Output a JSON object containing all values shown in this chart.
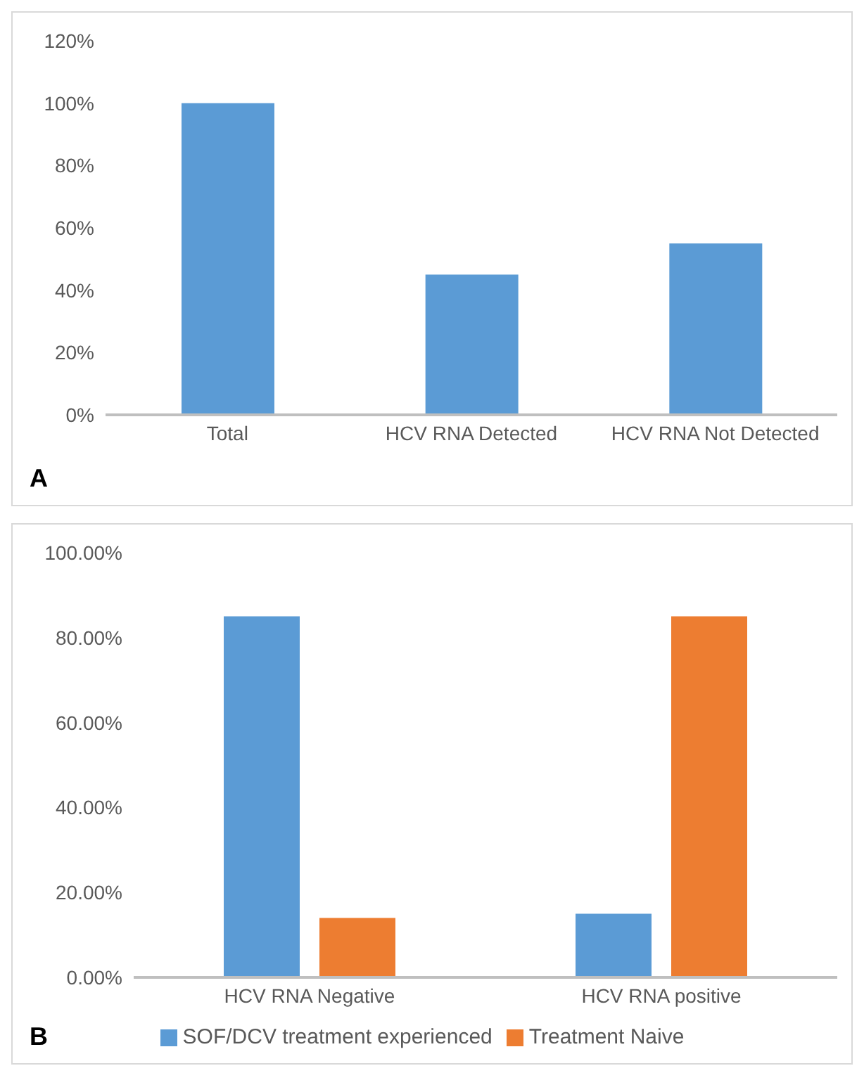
{
  "chart_data": [
    {
      "type": "bar",
      "categories": [
        "Total",
        "HCV RNA Detected",
        "HCV RNA Not Detected"
      ],
      "values": [
        100,
        45,
        55
      ],
      "color": "#5b9bd5",
      "ylim": [
        0,
        120
      ],
      "yticks": [
        {
          "value": 0,
          "label": "0%"
        },
        {
          "value": 20,
          "label": "20%"
        },
        {
          "value": 40,
          "label": "40%"
        },
        {
          "value": 60,
          "label": "60%"
        },
        {
          "value": 80,
          "label": "80%"
        },
        {
          "value": 100,
          "label": "100%"
        },
        {
          "value": 120,
          "label": "120%"
        }
      ],
      "grid": false,
      "legend": false,
      "annotations": [
        "A"
      ]
    },
    {
      "type": "bar",
      "categories": [
        "HCV RNA Negative",
        "HCV RNA positive"
      ],
      "series": [
        {
          "name": "SOF/DCV treatment experienced",
          "color": "#5b9bd5",
          "values": [
            85,
            15
          ]
        },
        {
          "name": "Treatment Naive",
          "color": "#ed7d31",
          "values": [
            14,
            85
          ]
        }
      ],
      "ylim": [
        0,
        100
      ],
      "yticks": [
        {
          "value": 0,
          "label": "0.00%"
        },
        {
          "value": 20,
          "label": "20.00%"
        },
        {
          "value": 40,
          "label": "40.00%"
        },
        {
          "value": 60,
          "label": "60.00%"
        },
        {
          "value": 80,
          "label": "80.00%"
        },
        {
          "value": 100,
          "label": "100.00%"
        }
      ],
      "grid": false,
      "legend": "bottom",
      "annotations": [
        "B"
      ]
    }
  ]
}
